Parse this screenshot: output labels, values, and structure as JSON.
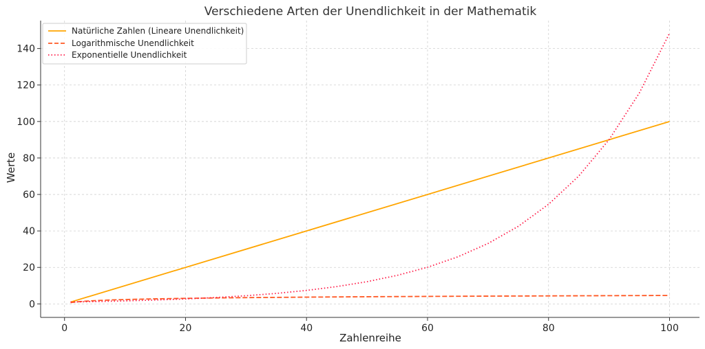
{
  "chart_data": {
    "type": "line",
    "title": "Verschiedene Arten der Unendlichkeit in der Mathematik",
    "xlabel": "Zahlenreihe",
    "ylabel": "Werte",
    "xlim": [
      -3.95,
      104.95
    ],
    "ylim": [
      -7.4,
      155.3
    ],
    "xticks": [
      0,
      20,
      40,
      60,
      80,
      100
    ],
    "yticks": [
      0,
      20,
      40,
      60,
      80,
      100,
      120,
      140
    ],
    "grid": true,
    "legend_position": "top-left",
    "series": [
      {
        "name": "Natürliche Zahlen (Lineare Unendlichkeit)",
        "color": "#FFA500",
        "style": "solid",
        "x": [
          1,
          100
        ],
        "y": [
          1,
          100
        ]
      },
      {
        "name": "Logarithmische Unendlichkeit",
        "color": "#FF5722",
        "style": "dashed",
        "x": [
          1,
          2,
          3,
          5,
          8,
          12,
          16,
          20,
          25,
          30,
          40,
          50,
          60,
          70,
          80,
          90,
          100
        ],
        "y": [
          0.69,
          1.1,
          1.39,
          1.79,
          2.2,
          2.56,
          2.83,
          3.04,
          3.26,
          3.43,
          3.71,
          3.93,
          4.11,
          4.26,
          4.39,
          4.51,
          4.62
        ]
      },
      {
        "name": "Exponentielle Unendlichkeit",
        "color": "#FF1744",
        "style": "dotted",
        "x": [
          1,
          5,
          10,
          15,
          20,
          25,
          30,
          35,
          40,
          45,
          50,
          55,
          60,
          65,
          70,
          75,
          80,
          85,
          90,
          95,
          100
        ],
        "y": [
          1.05,
          1.28,
          1.65,
          2.12,
          2.72,
          3.49,
          4.48,
          5.75,
          7.39,
          9.49,
          12.18,
          15.64,
          20.09,
          25.79,
          33.12,
          42.52,
          54.6,
          70.11,
          90.02,
          115.58,
          148.41
        ]
      }
    ]
  }
}
